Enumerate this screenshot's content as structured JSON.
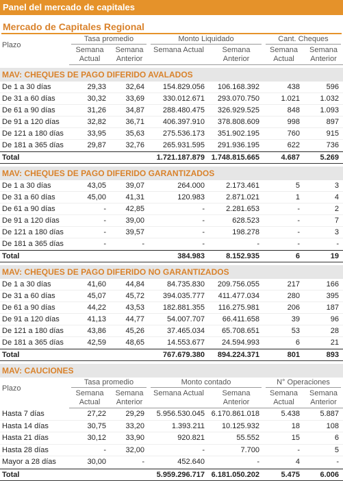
{
  "header": {
    "title": "Panel del mercado de capitales",
    "subtitle": "Mercado de Capitales Regional"
  },
  "column_headers": {
    "plazo": "Plazo",
    "groups": [
      "Tasa promedio",
      "Monto Liquidado",
      "Cant. Cheques"
    ],
    "sub": [
      "Semana Actual",
      "Semana Anterior"
    ]
  },
  "sections": [
    {
      "title": "MAV: CHEQUES DE PAGO DIFERIDO AVALADOS",
      "rows": [
        {
          "label": "De 1 a 30 días",
          "cells": [
            "29,33",
            "32,64",
            "154.829.056",
            "106.168.392",
            "438",
            "596"
          ]
        },
        {
          "label": "De 31 a 60 días",
          "cells": [
            "30,32",
            "33,69",
            "330.012.671",
            "293.070.750",
            "1.021",
            "1.032"
          ]
        },
        {
          "label": "De 61 a 90 días",
          "cells": [
            "31,26",
            "34,87",
            "288.480.475",
            "326.929.525",
            "848",
            "1.093"
          ]
        },
        {
          "label": "De 91 a 120 días",
          "cells": [
            "32,82",
            "36,71",
            "406.397.910",
            "378.808.609",
            "998",
            "897"
          ]
        },
        {
          "label": "De 121 a 180 días",
          "cells": [
            "33,95",
            "35,63",
            "275.536.173",
            "351.902.195",
            "760",
            "915"
          ]
        },
        {
          "label": "De 181 a 365 días",
          "cells": [
            "29,87",
            "32,76",
            "265.931.595",
            "291.936.195",
            "622",
            "736"
          ]
        }
      ],
      "total": {
        "label": "Total",
        "cells": [
          "1.721.187.879",
          "1.748.815.665",
          "4.687",
          "5.269"
        ]
      }
    },
    {
      "title": "MAV: CHEQUES DE PAGO DIFERIDO GARANTIZADOS",
      "rows": [
        {
          "label": "De 1 a 30 días",
          "cells": [
            "43,05",
            "39,07",
            "264.000",
            "2.173.461",
            "5",
            "3"
          ]
        },
        {
          "label": "De 31 a 60 días",
          "cells": [
            "45,00",
            "41,31",
            "120.983",
            "2.871.021",
            "1",
            "4"
          ]
        },
        {
          "label": "De 61 a 90 días",
          "cells": [
            "-",
            "42,85",
            "-",
            "2.281.653",
            "-",
            "2"
          ]
        },
        {
          "label": "De 91 a 120 días",
          "cells": [
            "-",
            "39,00",
            "-",
            "628.523",
            "-",
            "7"
          ]
        },
        {
          "label": "De 121 a 180 días",
          "cells": [
            "-",
            "39,57",
            "-",
            "198.278",
            "-",
            "3"
          ]
        },
        {
          "label": "De 181 a 365 días",
          "cells": [
            "-",
            "-",
            "-",
            "-",
            "-",
            "-"
          ]
        }
      ],
      "total": {
        "label": "Total",
        "cells": [
          "384.983",
          "8.152.935",
          "6",
          "19"
        ]
      }
    },
    {
      "title": "MAV: CHEQUES DE PAGO DIFERIDO NO GARANTIZADOS",
      "rows": [
        {
          "label": "De 1 a 30 días",
          "cells": [
            "41,60",
            "44,84",
            "84.735.830",
            "209.756.055",
            "217",
            "166"
          ]
        },
        {
          "label": "De 31 a 60 días",
          "cells": [
            "45,07",
            "45,72",
            "394.035.777",
            "411.477.034",
            "280",
            "395"
          ]
        },
        {
          "label": "De 61 a 90 días",
          "cells": [
            "44,22",
            "43,53",
            "182.881.355",
            "116.275.981",
            "206",
            "187"
          ]
        },
        {
          "label": "De 91 a 120 días",
          "cells": [
            "41,13",
            "44,77",
            "54.007.707",
            "66.411.658",
            "39",
            "96"
          ]
        },
        {
          "label": "De 121 a 180 días",
          "cells": [
            "43,86",
            "45,26",
            "37.465.034",
            "65.708.651",
            "53",
            "28"
          ]
        },
        {
          "label": "De 181 a 365 días",
          "cells": [
            "42,59",
            "48,65",
            "14.553.677",
            "24.594.993",
            "6",
            "21"
          ]
        }
      ],
      "total": {
        "label": "Total",
        "cells": [
          "767.679.380",
          "894.224.371",
          "801",
          "893"
        ]
      }
    },
    {
      "title": "MAV: CAUCIONES",
      "column_headers": {
        "plazo": "Plazo",
        "groups": [
          "Tasa promedio",
          "Monto contado",
          "N° Operaciones"
        ],
        "sub": [
          "Semana Actual",
          "Semana Anterior"
        ]
      },
      "rows": [
        {
          "label": "Hasta 7 días",
          "cells": [
            "27,22",
            "29,29",
            "5.956.530.045",
            "6.170.861.018",
            "5.438",
            "5.887"
          ]
        },
        {
          "label": "Hasta 14 días",
          "cells": [
            "30,75",
            "33,20",
            "1.393.211",
            "10.125.932",
            "18",
            "108"
          ]
        },
        {
          "label": "Hasta 21 días",
          "cells": [
            "30,12",
            "33,90",
            "920.821",
            "55.552",
            "15",
            "6"
          ]
        },
        {
          "label": "Hasta 28 días",
          "cells": [
            "-",
            "32,00",
            "-",
            "7.700",
            "-",
            "5"
          ]
        },
        {
          "label": "Mayor a 28 días",
          "cells": [
            "30,00",
            "-",
            "452.640",
            "-",
            "4",
            "-"
          ]
        }
      ],
      "total": {
        "label": "Total",
        "cells": [
          "5.959.296.717",
          "6.181.050.202",
          "5.475",
          "6.006"
        ]
      }
    }
  ]
}
